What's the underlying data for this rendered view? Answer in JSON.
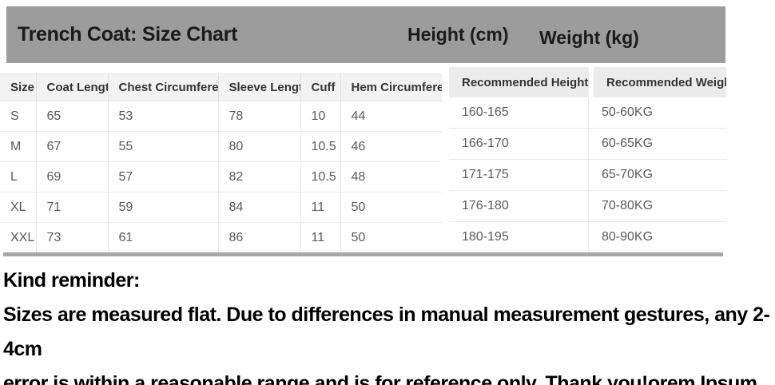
{
  "title_bar": {
    "title": "Trench Coat: Size Chart",
    "height_label": "Height (cm)",
    "weight_label": "Weight (kg)"
  },
  "size_table": {
    "columns": [
      "Size",
      "Coat Length",
      "Chest Circumference",
      "Sleeve Length",
      "Cuff",
      "Hem Circumference"
    ],
    "rows": [
      [
        "S",
        "65",
        "53",
        "78",
        "10",
        "44"
      ],
      [
        "M",
        "67",
        "55",
        "80",
        "10.5",
        "46"
      ],
      [
        "L",
        "69",
        "57",
        "82",
        "10.5",
        "48"
      ],
      [
        "XL",
        "71",
        "59",
        "84",
        "11",
        "50"
      ],
      [
        "XXL",
        "73",
        "61",
        "86",
        "11",
        "50"
      ]
    ]
  },
  "recommendation_table": {
    "columns": [
      "Recommended Height (cm)",
      "Recommended Weight (kg)"
    ],
    "rows": [
      [
        "160-165",
        "50-60KG"
      ],
      [
        "166-170",
        "60-65KG"
      ],
      [
        "171-175",
        "65-70KG"
      ],
      [
        "176-180",
        "70-80KG"
      ],
      [
        "180-195",
        "80-90KG"
      ]
    ]
  },
  "reminder": {
    "heading": "Kind reminder:",
    "line1": "Sizes are measured flat. Due to differences in manual measurement gestures, any 2-4cm",
    "line2": "error is within a reasonable range and is for reference only. Thank you!orem Ipsum"
  },
  "colors": {
    "title_bar_bg": "#9c9c9c",
    "size_table_header_bg": "#f3f3f3",
    "recommendation_header_bg": "#ececec",
    "base_line": "#a8a8a8"
  }
}
